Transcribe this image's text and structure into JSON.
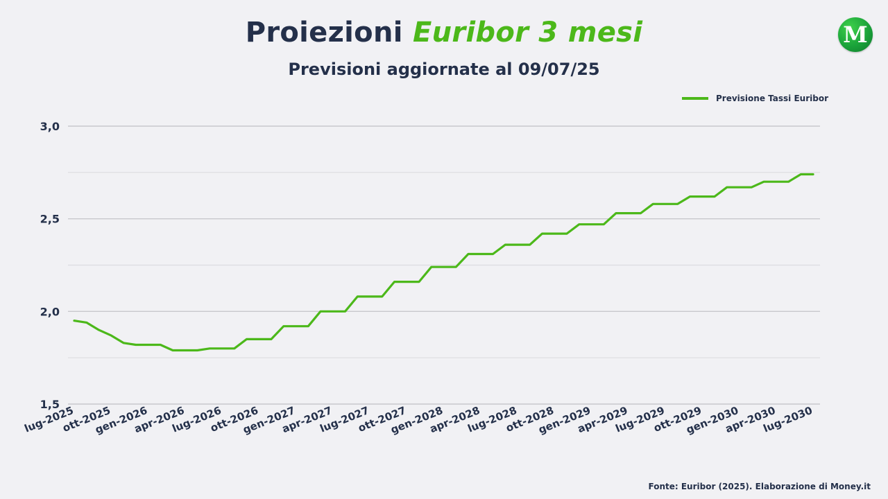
{
  "header": {
    "title_main": "Proiezioni",
    "title_accent": "Euribor 3 mesi",
    "subtitle": "Previsioni aggiornate al 09/07/25"
  },
  "logo": {
    "letter": "M"
  },
  "source": "Fonte: Euribor (2025). Elaborazione di Money.it",
  "colors": {
    "line": "#4cb81a",
    "text": "#24304a",
    "grid": "#c8c8cc"
  },
  "chart_data": {
    "type": "line",
    "title": "Proiezioni Euribor 3 mesi",
    "subtitle": "Previsioni aggiornate al 09/07/25",
    "xlabel": "",
    "ylabel": "",
    "ylim": [
      1.5,
      3.0
    ],
    "yticks": [
      "1,5",
      "2,0",
      "2,5",
      "3,0"
    ],
    "ytick_values": [
      1.5,
      2.0,
      2.5,
      3.0
    ],
    "minor_gridlines": [
      1.75,
      2.25,
      2.75
    ],
    "legend": {
      "label": "Previsione Tassi Euribor",
      "position": "top-right"
    },
    "x_tick_labels": [
      "lug-2025",
      "ott-2025",
      "gen-2026",
      "apr-2026",
      "lug-2026",
      "ott-2026",
      "gen-2027",
      "apr-2027",
      "lug-2027",
      "ott-2027",
      "gen-2028",
      "apr-2028",
      "lug-2028",
      "ott-2028",
      "gen-2029",
      "apr-2029",
      "lug-2029",
      "ott-2029",
      "gen-2030",
      "apr-2030",
      "lug-2030"
    ],
    "series": [
      {
        "name": "Previsione Tassi Euribor",
        "values": [
          1.95,
          1.94,
          1.9,
          1.87,
          1.83,
          1.82,
          1.82,
          1.82,
          1.79,
          1.79,
          1.79,
          1.8,
          1.8,
          1.8,
          1.85,
          1.85,
          1.85,
          1.92,
          1.92,
          1.92,
          2.0,
          2.0,
          2.0,
          2.08,
          2.08,
          2.08,
          2.16,
          2.16,
          2.16,
          2.24,
          2.24,
          2.24,
          2.31,
          2.31,
          2.31,
          2.36,
          2.36,
          2.36,
          2.42,
          2.42,
          2.42,
          2.47,
          2.47,
          2.47,
          2.53,
          2.53,
          2.53,
          2.58,
          2.58,
          2.58,
          2.62,
          2.62,
          2.62,
          2.67,
          2.67,
          2.67,
          2.7,
          2.7,
          2.7,
          2.74,
          2.74
        ]
      }
    ]
  }
}
